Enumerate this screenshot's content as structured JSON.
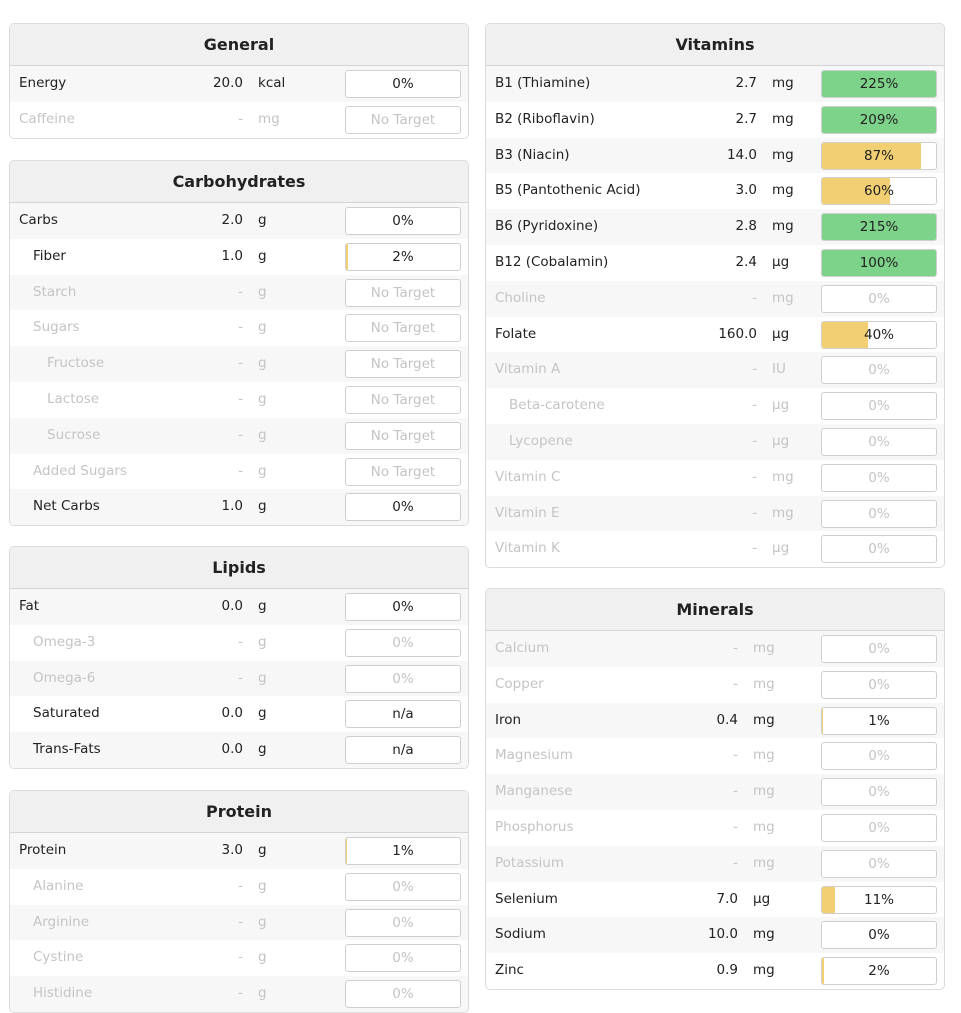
{
  "panels": [
    {
      "title": "General",
      "rows": [
        {
          "name": "Energy",
          "amount": "20.0",
          "unit": "kcal",
          "target": "0%",
          "percent": 0
        },
        {
          "name": "Caffeine",
          "amount": "-",
          "unit": "mg",
          "target": "No Target"
        }
      ]
    },
    {
      "title": "Carbohydrates",
      "rows": [
        {
          "name": "Carbs",
          "amount": "2.0",
          "unit": "g",
          "target": "0%",
          "percent": 0
        },
        {
          "name": "Fiber",
          "amount": "1.0",
          "unit": "g",
          "target": "2%",
          "percent": 2
        },
        {
          "name": "Starch",
          "amount": "-",
          "unit": "g",
          "target": "No Target"
        },
        {
          "name": "Sugars",
          "amount": "-",
          "unit": "g",
          "target": "No Target"
        },
        {
          "name": "Fructose",
          "amount": "-",
          "unit": "g",
          "target": "No Target"
        },
        {
          "name": "Lactose",
          "amount": "-",
          "unit": "g",
          "target": "No Target"
        },
        {
          "name": "Sucrose",
          "amount": "-",
          "unit": "g",
          "target": "No Target"
        },
        {
          "name": "Added Sugars",
          "amount": "-",
          "unit": "g",
          "target": "No Target"
        },
        {
          "name": "Net Carbs",
          "amount": "1.0",
          "unit": "g",
          "target": "0%",
          "percent": 0
        }
      ]
    },
    {
      "title": "Lipids",
      "rows": [
        {
          "name": "Fat",
          "amount": "0.0",
          "unit": "g",
          "target": "0%",
          "percent": 0
        },
        {
          "name": "Omega-3",
          "amount": "-",
          "unit": "g",
          "target": "0%",
          "percent": 0
        },
        {
          "name": "Omega-6",
          "amount": "-",
          "unit": "g",
          "target": "0%",
          "percent": 0
        },
        {
          "name": "Saturated",
          "amount": "0.0",
          "unit": "g",
          "target": "n/a"
        },
        {
          "name": "Trans-Fats",
          "amount": "0.0",
          "unit": "g",
          "target": "n/a"
        }
      ]
    },
    {
      "title": "Protein",
      "rows": [
        {
          "name": "Protein",
          "amount": "3.0",
          "unit": "g",
          "target": "1%",
          "percent": 1
        },
        {
          "name": "Alanine",
          "amount": "-",
          "unit": "g",
          "target": "0%",
          "percent": 0
        },
        {
          "name": "Arginine",
          "amount": "-",
          "unit": "g",
          "target": "0%",
          "percent": 0
        },
        {
          "name": "Cystine",
          "amount": "-",
          "unit": "g",
          "target": "0%",
          "percent": 0
        },
        {
          "name": "Histidine",
          "amount": "-",
          "unit": "g",
          "target": "0%",
          "percent": 0
        }
      ]
    },
    {
      "title": "Vitamins",
      "rows": [
        {
          "name": "B1 (Thiamine)",
          "amount": "2.7",
          "unit": "mg",
          "target": "225%",
          "percent": 225
        },
        {
          "name": "B2 (Riboflavin)",
          "amount": "2.7",
          "unit": "mg",
          "target": "209%",
          "percent": 209
        },
        {
          "name": "B3 (Niacin)",
          "amount": "14.0",
          "unit": "mg",
          "target": "87%",
          "percent": 87
        },
        {
          "name": "B5 (Pantothenic Acid)",
          "amount": "3.0",
          "unit": "mg",
          "target": "60%",
          "percent": 60
        },
        {
          "name": "B6 (Pyridoxine)",
          "amount": "2.8",
          "unit": "mg",
          "target": "215%",
          "percent": 215
        },
        {
          "name": "B12 (Cobalamin)",
          "amount": "2.4",
          "unit": "µg",
          "target": "100%",
          "percent": 100
        },
        {
          "name": "Choline",
          "amount": "-",
          "unit": "mg",
          "target": "0%",
          "percent": 0
        },
        {
          "name": "Folate",
          "amount": "160.0",
          "unit": "µg",
          "target": "40%",
          "percent": 40
        },
        {
          "name": "Vitamin A",
          "amount": "-",
          "unit": "IU",
          "target": "0%",
          "percent": 0
        },
        {
          "name": "Beta-carotene",
          "amount": "-",
          "unit": "µg",
          "target": "0%",
          "percent": 0
        },
        {
          "name": "Lycopene",
          "amount": "-",
          "unit": "µg",
          "target": "0%",
          "percent": 0
        },
        {
          "name": "Vitamin C",
          "amount": "-",
          "unit": "mg",
          "target": "0%",
          "percent": 0
        },
        {
          "name": "Vitamin E",
          "amount": "-",
          "unit": "mg",
          "target": "0%",
          "percent": 0
        },
        {
          "name": "Vitamin K",
          "amount": "-",
          "unit": "µg",
          "target": "0%",
          "percent": 0
        }
      ]
    },
    {
      "title": "Minerals",
      "rows": [
        {
          "name": "Calcium",
          "amount": "-",
          "unit": "mg",
          "target": "0%",
          "percent": 0
        },
        {
          "name": "Copper",
          "amount": "-",
          "unit": "mg",
          "target": "0%",
          "percent": 0
        },
        {
          "name": "Iron",
          "amount": "0.4",
          "unit": "mg",
          "target": "1%",
          "percent": 1
        },
        {
          "name": "Magnesium",
          "amount": "-",
          "unit": "mg",
          "target": "0%",
          "percent": 0
        },
        {
          "name": "Manganese",
          "amount": "-",
          "unit": "mg",
          "target": "0%",
          "percent": 0
        },
        {
          "name": "Phosphorus",
          "amount": "-",
          "unit": "mg",
          "target": "0%",
          "percent": 0
        },
        {
          "name": "Potassium",
          "amount": "-",
          "unit": "mg",
          "target": "0%",
          "percent": 0
        },
        {
          "name": "Selenium",
          "amount": "7.0",
          "unit": "µg",
          "target": "11%",
          "percent": 11
        },
        {
          "name": "Sodium",
          "amount": "10.0",
          "unit": "mg",
          "target": "0%",
          "percent": 0
        },
        {
          "name": "Zinc",
          "amount": "0.9",
          "unit": "mg",
          "target": "2%",
          "percent": 2
        }
      ]
    }
  ]
}
